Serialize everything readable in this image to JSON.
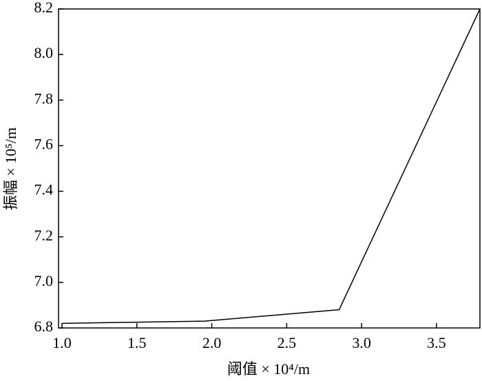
{
  "chart_data": {
    "type": "line",
    "xlabel": "阈值 × 10⁴/m",
    "ylabel": "振幅 × 10⁵/m",
    "x": [
      1.0,
      1.95,
      2.85,
      3.79
    ],
    "series": [
      {
        "color": "#000000",
        "values": [
          6.82,
          6.83,
          6.88,
          8.2
        ]
      }
    ],
    "xlim": [
      0.977,
      3.79
    ],
    "ylim": [
      6.8,
      8.2
    ],
    "xticks": [
      {
        "value": 1,
        "label": "1.0"
      },
      1.5,
      {
        "value": 2,
        "label": "2.0"
      },
      2.5,
      {
        "value": 3,
        "label": "3.0"
      },
      3.5
    ],
    "yticks": [
      6.8,
      {
        "value": 7,
        "label": "7.0"
      },
      7.2,
      7.4,
      7.6,
      7.8,
      {
        "value": 8,
        "label": "8.0"
      },
      8.2
    ],
    "grid": false
  }
}
